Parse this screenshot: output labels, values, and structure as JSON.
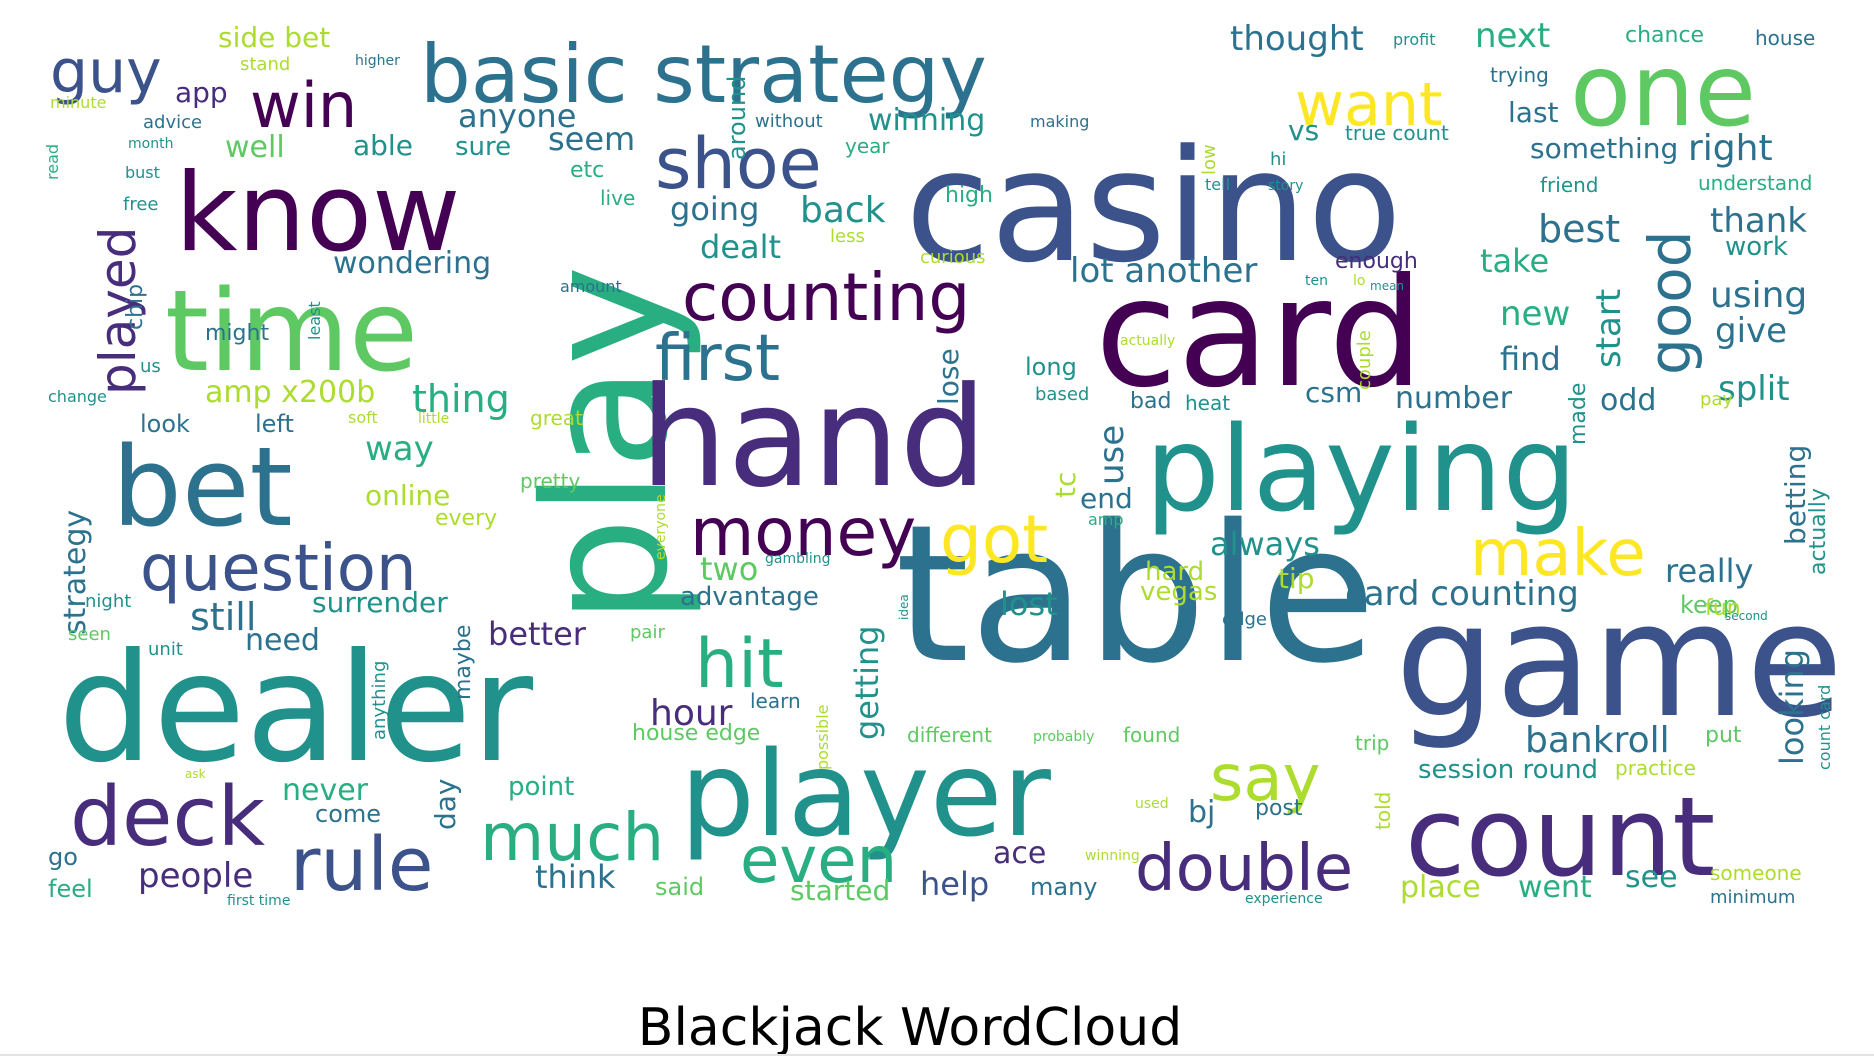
{
  "title": "Blackjack WordCloud",
  "palette": [
    "#440154",
    "#472d7b",
    "#3b528b",
    "#2c728e",
    "#21918c",
    "#28ae80",
    "#5ec962",
    "#addc30",
    "#fde725"
  ],
  "words": [
    {
      "text": "table",
      "c": 3
    },
    {
      "text": "game",
      "c": 2
    },
    {
      "text": "casino",
      "c": 2
    },
    {
      "text": "dealer",
      "c": 4
    },
    {
      "text": "play",
      "c": 5
    },
    {
      "text": "card",
      "c": 0
    },
    {
      "text": "hand",
      "c": 1
    },
    {
      "text": "playing",
      "c": 4
    },
    {
      "text": "player",
      "c": 4
    },
    {
      "text": "count",
      "c": 1
    },
    {
      "text": "time",
      "c": 6
    },
    {
      "text": "know",
      "c": 0
    },
    {
      "text": "bet",
      "c": 3
    },
    {
      "text": "basic strategy",
      "c": 3
    },
    {
      "text": "one",
      "c": 6
    },
    {
      "text": "money",
      "c": 0
    },
    {
      "text": "counting",
      "c": 0
    },
    {
      "text": "question",
      "c": 2
    },
    {
      "text": "deck",
      "c": 1
    },
    {
      "text": "rule",
      "c": 2
    },
    {
      "text": "double",
      "c": 1
    },
    {
      "text": "got",
      "c": 8
    },
    {
      "text": "shoe",
      "c": 2
    },
    {
      "text": "first",
      "c": 3
    },
    {
      "text": "much",
      "c": 5
    },
    {
      "text": "hit",
      "c": 5
    },
    {
      "text": "even",
      "c": 5
    },
    {
      "text": "say",
      "c": 7
    },
    {
      "text": "make",
      "c": 8
    },
    {
      "text": "want",
      "c": 8
    },
    {
      "text": "good",
      "c": 3
    },
    {
      "text": "win",
      "c": 0
    },
    {
      "text": "guy",
      "c": 2
    },
    {
      "text": "played",
      "c": 1
    },
    {
      "text": "hour",
      "c": 1
    },
    {
      "text": "bankroll",
      "c": 3
    },
    {
      "text": "card counting",
      "c": 3
    },
    {
      "text": "still",
      "c": 3
    },
    {
      "text": "people",
      "c": 1
    },
    {
      "text": "anyone",
      "c": 3
    },
    {
      "text": "wondering",
      "c": 3
    },
    {
      "text": "amp x200b",
      "c": 7
    },
    {
      "text": "thing",
      "c": 5
    },
    {
      "text": "best",
      "c": 3
    },
    {
      "text": "split",
      "c": 4
    },
    {
      "text": "thank",
      "c": 3
    },
    {
      "text": "using",
      "c": 3
    },
    {
      "text": "give",
      "c": 3
    },
    {
      "text": "find",
      "c": 3
    },
    {
      "text": "new",
      "c": 5
    },
    {
      "text": "take",
      "c": 5
    },
    {
      "text": "start",
      "c": 4
    },
    {
      "text": "lot another",
      "c": 3
    },
    {
      "text": "thought",
      "c": 3
    },
    {
      "text": "next",
      "c": 5
    },
    {
      "text": "right",
      "c": 3
    },
    {
      "text": "last",
      "c": 3
    },
    {
      "text": "something",
      "c": 3
    },
    {
      "text": "winning",
      "c": 4
    },
    {
      "text": "seem",
      "c": 3
    },
    {
      "text": "going",
      "c": 3
    },
    {
      "text": "back",
      "c": 4
    },
    {
      "text": "dealt",
      "c": 4
    },
    {
      "text": "well",
      "c": 6
    },
    {
      "text": "able",
      "c": 4
    },
    {
      "text": "sure",
      "c": 4
    },
    {
      "text": "app",
      "c": 1
    },
    {
      "text": "side bet",
      "c": 7
    },
    {
      "text": "way",
      "c": 5
    },
    {
      "text": "online",
      "c": 7
    },
    {
      "text": "surrender",
      "c": 4
    },
    {
      "text": "need",
      "c": 3
    },
    {
      "text": "better",
      "c": 1
    },
    {
      "text": "advantage",
      "c": 3
    },
    {
      "text": "two",
      "c": 6
    },
    {
      "text": "getting",
      "c": 4
    },
    {
      "text": "lost",
      "c": 4
    },
    {
      "text": "always",
      "c": 4
    },
    {
      "text": "hard",
      "c": 7
    },
    {
      "text": "vegas",
      "c": 7
    },
    {
      "text": "tip",
      "c": 7
    },
    {
      "text": "really",
      "c": 3
    },
    {
      "text": "looking",
      "c": 3
    },
    {
      "text": "betting",
      "c": 3
    },
    {
      "text": "actually",
      "c": 4
    },
    {
      "text": "never",
      "c": 5
    },
    {
      "text": "point",
      "c": 5
    },
    {
      "text": "come",
      "c": 3
    },
    {
      "text": "think",
      "c": 3
    },
    {
      "text": "said",
      "c": 6
    },
    {
      "text": "started",
      "c": 6
    },
    {
      "text": "help",
      "c": 2
    },
    {
      "text": "many",
      "c": 3
    },
    {
      "text": "ace",
      "c": 1
    },
    {
      "text": "bj",
      "c": 3
    },
    {
      "text": "post",
      "c": 3
    },
    {
      "text": "session round",
      "c": 4
    },
    {
      "text": "place",
      "c": 7
    },
    {
      "text": "went",
      "c": 5
    },
    {
      "text": "see",
      "c": 4
    },
    {
      "text": "someone",
      "c": 7
    },
    {
      "text": "minimum",
      "c": 3
    },
    {
      "text": "number",
      "c": 3
    },
    {
      "text": "odd",
      "c": 3
    },
    {
      "text": "csm",
      "c": 3
    },
    {
      "text": "look",
      "c": 3
    },
    {
      "text": "left",
      "c": 3
    },
    {
      "text": "strategy",
      "c": 3
    },
    {
      "text": "use",
      "c": 3
    },
    {
      "text": "end",
      "c": 3
    },
    {
      "text": "tc",
      "c": 7
    },
    {
      "text": "lose",
      "c": 3
    },
    {
      "text": "vs",
      "c": 4
    },
    {
      "text": "true count",
      "c": 4
    },
    {
      "text": "enough",
      "c": 1
    },
    {
      "text": "chance",
      "c": 5
    },
    {
      "text": "house",
      "c": 3
    },
    {
      "text": "profit",
      "c": 4
    },
    {
      "text": "trying",
      "c": 3
    },
    {
      "text": "around",
      "c": 4
    },
    {
      "text": "without",
      "c": 3
    },
    {
      "text": "making",
      "c": 3
    },
    {
      "text": "high",
      "c": 5
    },
    {
      "text": "year",
      "c": 5
    },
    {
      "text": "friend",
      "c": 4
    },
    {
      "text": "understand",
      "c": 5
    },
    {
      "text": "work",
      "c": 4
    },
    {
      "text": "etc",
      "c": 5
    },
    {
      "text": "live",
      "c": 5
    },
    {
      "text": "less",
      "c": 7
    },
    {
      "text": "curious",
      "c": 7
    },
    {
      "text": "long",
      "c": 4
    },
    {
      "text": "based",
      "c": 4
    },
    {
      "text": "bad",
      "c": 3
    },
    {
      "text": "heat",
      "c": 4
    },
    {
      "text": "chip",
      "c": 3
    },
    {
      "text": "night",
      "c": 4
    },
    {
      "text": "us",
      "c": 4
    },
    {
      "text": "change",
      "c": 4
    },
    {
      "text": "advice",
      "c": 3
    },
    {
      "text": "month",
      "c": 4
    },
    {
      "text": "bust",
      "c": 4
    },
    {
      "text": "free",
      "c": 4
    },
    {
      "text": "minute",
      "c": 7
    },
    {
      "text": "stand",
      "c": 7
    },
    {
      "text": "higher",
      "c": 3
    },
    {
      "text": "soft",
      "c": 7
    },
    {
      "text": "little",
      "c": 7
    },
    {
      "text": "great",
      "c": 7
    },
    {
      "text": "pretty",
      "c": 6
    },
    {
      "text": "every",
      "c": 7
    },
    {
      "text": "seen",
      "c": 6
    },
    {
      "text": "unit",
      "c": 4
    },
    {
      "text": "anything",
      "c": 4
    },
    {
      "text": "maybe",
      "c": 3
    },
    {
      "text": "day",
      "c": 3
    },
    {
      "text": "pair",
      "c": 6
    },
    {
      "text": "learn",
      "c": 3
    },
    {
      "text": "house edge",
      "c": 6
    },
    {
      "text": "different",
      "c": 6
    },
    {
      "text": "probably",
      "c": 6
    },
    {
      "text": "found",
      "c": 6
    },
    {
      "text": "trip",
      "c": 6
    },
    {
      "text": "put",
      "c": 6
    },
    {
      "text": "practice",
      "c": 7
    },
    {
      "text": "count card",
      "c": 4
    },
    {
      "text": "keep",
      "c": 6
    },
    {
      "text": "fun",
      "c": 7
    },
    {
      "text": "second",
      "c": 4
    },
    {
      "text": "edge",
      "c": 3
    },
    {
      "text": "gambling",
      "c": 4
    },
    {
      "text": "everyone",
      "c": 7
    },
    {
      "text": "amount",
      "c": 3
    },
    {
      "text": "might",
      "c": 3
    },
    {
      "text": "least",
      "c": 4
    },
    {
      "text": "feel",
      "c": 5
    },
    {
      "text": "go",
      "c": 3
    },
    {
      "text": "first time",
      "c": 4
    },
    {
      "text": "possible",
      "c": 7
    },
    {
      "text": "told",
      "c": 7
    },
    {
      "text": "used",
      "c": 7
    },
    {
      "text": "made",
      "c": 4
    },
    {
      "text": "pay",
      "c": 7
    },
    {
      "text": "couple",
      "c": 7
    },
    {
      "text": "actually",
      "c": 7
    },
    {
      "text": "hi",
      "c": 4
    },
    {
      "text": "tell",
      "c": 4
    },
    {
      "text": "story",
      "c": 4
    },
    {
      "text": "mean",
      "c": 4
    },
    {
      "text": "experience",
      "c": 4
    },
    {
      "text": "winning",
      "c": 7
    },
    {
      "text": "idea",
      "c": 4
    },
    {
      "text": "read",
      "c": 5
    },
    {
      "text": "low",
      "c": 7
    },
    {
      "text": "ask",
      "c": 7
    },
    {
      "text": "lo",
      "c": 7
    },
    {
      "text": "amp",
      "c": 5
    },
    {
      "text": "ten",
      "c": 4
    }
  ]
}
